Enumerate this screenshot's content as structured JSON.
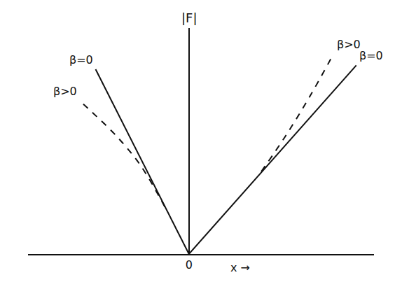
{
  "chart_data": {
    "type": "line",
    "y_label": "|F|",
    "x_label": "x →",
    "xlim": [
      -1.0,
      1.15
    ],
    "ylim": [
      0,
      1.15
    ],
    "xticks": [
      0
    ],
    "tick_labels": "x",
    "grid": false,
    "series": [
      {
        "name": "β=0",
        "color": "#111111",
        "line_style": "solid",
        "side": "left",
        "x": [
          0,
          -0.58
        ],
        "values": [
          0,
          0.94
        ]
      },
      {
        "name": "β>0",
        "color": "#111111",
        "line_style": "dash",
        "side": "left",
        "x": [
          -0.15,
          -0.3,
          -0.45,
          -0.6,
          -0.68
        ],
        "values": [
          0.24,
          0.45,
          0.6,
          0.72,
          0.78
        ]
      },
      {
        "name": "β=0",
        "color": "#111111",
        "line_style": "solid",
        "side": "right",
        "x": [
          0,
          1.04
        ],
        "values": [
          0,
          0.96
        ]
      },
      {
        "name": "β>0",
        "color": "#111111",
        "line_style": "dash",
        "side": "right",
        "x": [
          0.45,
          0.6,
          0.75,
          0.9
        ],
        "values": [
          0.42,
          0.6,
          0.8,
          1.02
        ]
      }
    ]
  }
}
